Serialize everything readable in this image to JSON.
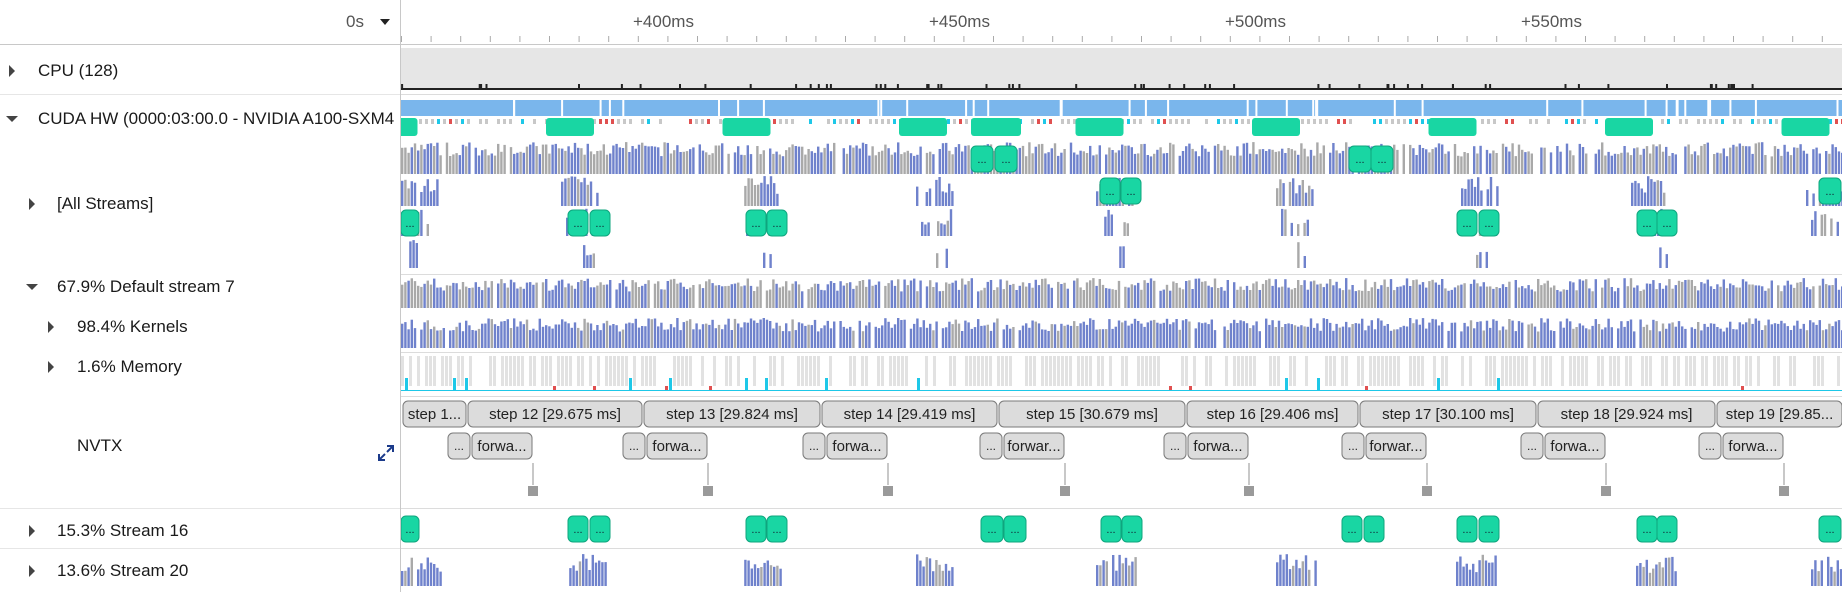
{
  "header": {
    "time_origin": "0s",
    "ruler_ticks": [
      "+400ms",
      "+450ms",
      "+500ms",
      "+550ms"
    ]
  },
  "rows": {
    "cpu": "CPU (128)",
    "cuda_hw": "CUDA HW (0000:03:00.0 - NVIDIA A100-SXM4",
    "all_streams": "[All Streams]",
    "default_stream": "67.9% Default stream 7",
    "kernels": "98.4% Kernels",
    "memory": "1.6% Memory",
    "nvtx": "NVTX",
    "stream16": "15.3% Stream 16",
    "stream20": "13.6% Stream 20"
  },
  "nvtx": {
    "steps": [
      "step 1...",
      "step 12 [29.675 ms]",
      "step 13 [29.824 ms]",
      "step 14 [29.419 ms]",
      "step 15 [30.679 ms]",
      "step 16 [29.406 ms]",
      "step 17 [30.100 ms]",
      "step 18 [29.924 ms]",
      "step 19 [29.85..."
    ],
    "forward_labels": [
      "forwa...",
      "forwa...",
      "forwa...",
      "forwar...",
      "forwa...",
      "forwar...",
      "forwa...",
      "forwa..."
    ],
    "ellipsis": "..."
  },
  "colors": {
    "kernel_blue": "#6f82cc",
    "kernel_gray": "#a9a9a9",
    "util_blue": "#7ab6ec",
    "green": "#19d6a3",
    "cyan": "#1ec8e8",
    "red": "#e05050"
  },
  "icons": [
    "expand-icon",
    "dropdown-icon"
  ]
}
